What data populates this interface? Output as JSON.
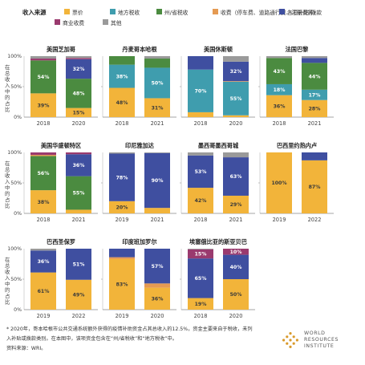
{
  "legend": {
    "title": "收入来源",
    "items": [
      {
        "key": "fare",
        "label": "票价",
        "color": "#f2b43a"
      },
      {
        "key": "local_tax",
        "label": "地方税收",
        "color": "#3f9dae"
      },
      {
        "key": "state_tax",
        "label": "州/省税收",
        "color": "#4b8b40"
      },
      {
        "key": "fees",
        "label": "收费（停车费、道路通行费、注册费等）",
        "color": "#e59a52"
      },
      {
        "key": "subsidy",
        "label": "各项补贴/拨款",
        "color": "#3f4fa0"
      },
      {
        "key": "commercial",
        "label": "商业收费",
        "color": "#9a3a6e"
      },
      {
        "key": "other",
        "label": "其他",
        "color": "#9a9a9a"
      }
    ]
  },
  "y_axis_label": "在总收入中的占比",
  "y_ticks": [
    "100%",
    "50%",
    "0%"
  ],
  "chart_data": {
    "type": "bar",
    "stacked": true,
    "ylim": [
      0,
      100
    ],
    "panels": [
      {
        "title": "美国芝加哥",
        "categories": [
          "2018",
          "2020"
        ],
        "bars": [
          {
            "fare": 39,
            "state_tax": 54,
            "commercial": 3,
            "other": 4
          },
          {
            "fare": 15,
            "state_tax": 48,
            "subsidy": 32,
            "commercial": 2,
            "other": 3
          }
        ],
        "labels": [
          {
            "fare": "39%",
            "state_tax": "54%"
          },
          {
            "fare": "15%",
            "state_tax": "48%",
            "subsidy": "32%"
          }
        ]
      },
      {
        "title": "丹麦哥本哈根",
        "categories": [
          "2018",
          "2021"
        ],
        "bars": [
          {
            "fare": 48,
            "local_tax": 38,
            "state_tax": 14
          },
          {
            "fare": 31,
            "local_tax": 50,
            "state_tax": 15,
            "other": 4
          }
        ],
        "labels": [
          {
            "fare": "48%",
            "local_tax": "38%"
          },
          {
            "fare": "31%",
            "local_tax": "50%"
          }
        ]
      },
      {
        "title": "美国休斯顿",
        "categories": [
          "2018",
          "2020"
        ],
        "bars": [
          {
            "fare": 8,
            "local_tax": 70,
            "subsidy": 22
          },
          {
            "fare": 3,
            "local_tax": 55,
            "subsidy": 32,
            "fees": 1,
            "other": 9
          }
        ],
        "labels": [
          {
            "local_tax": "70%"
          },
          {
            "local_tax": "55%",
            "subsidy": "32%"
          }
        ]
      },
      {
        "title": "法国巴黎",
        "categories": [
          "2018",
          "2021"
        ],
        "bars": [
          {
            "fare": 36,
            "local_tax": 18,
            "state_tax": 43,
            "other": 3
          },
          {
            "fare": 28,
            "local_tax": 17,
            "state_tax": 44,
            "subsidy": 8,
            "other": 3
          }
        ],
        "labels": [
          {
            "fare": "36%",
            "local_tax": "18%",
            "state_tax": "43%"
          },
          {
            "fare": "28%",
            "local_tax": "17%",
            "state_tax": "44%"
          }
        ]
      },
      {
        "title": "美国华盛顿特区",
        "categories": [
          "2018",
          "2021"
        ],
        "bars": [
          {
            "fare": 38,
            "state_tax": 56,
            "fees": 2,
            "commercial": 4
          },
          {
            "fare": 6,
            "state_tax": 55,
            "subsidy": 36,
            "commercial": 3
          }
        ],
        "labels": [
          {
            "fare": "38%",
            "state_tax": "56%"
          },
          {
            "state_tax": "55%",
            "subsidy": "36%"
          }
        ]
      },
      {
        "title": "印尼雅加达",
        "categories": [
          "2019",
          "2021"
        ],
        "bars": [
          {
            "fare": 20,
            "subsidy": 78,
            "other": 2
          },
          {
            "fare": 9,
            "subsidy": 90,
            "other": 1
          }
        ],
        "labels": [
          {
            "fare": "20%",
            "subsidy": "78%"
          },
          {
            "subsidy": "90%"
          }
        ]
      },
      {
        "title": "墨西哥墨西哥城",
        "categories": [
          "2018",
          "2021"
        ],
        "bars": [
          {
            "fare": 42,
            "subsidy": 53,
            "other": 5
          },
          {
            "fare": 29,
            "subsidy": 63,
            "other": 8
          }
        ],
        "labels": [
          {
            "fare": "42%",
            "subsidy": "53%"
          },
          {
            "fare": "29%",
            "subsidy": "63%"
          }
        ]
      },
      {
        "title": "巴西里约热内卢",
        "categories": [
          "2019",
          "2022"
        ],
        "bars": [
          {
            "fare": 100
          },
          {
            "fare": 87,
            "subsidy": 13
          }
        ],
        "labels": [
          {
            "fare": "100%"
          },
          {
            "fare": "87%"
          }
        ]
      },
      {
        "title": "巴西圣保罗",
        "categories": [
          "2019",
          "2022"
        ],
        "bars": [
          {
            "fare": 61,
            "subsidy": 36,
            "other": 3
          },
          {
            "fare": 49,
            "subsidy": 51
          }
        ],
        "labels": [
          {
            "fare": "61%",
            "subsidy": "36%"
          },
          {
            "fare": "49%",
            "subsidy": "51%"
          }
        ]
      },
      {
        "title": "印度班加罗尔",
        "categories": [
          "2019",
          "2020"
        ],
        "bars": [
          {
            "fare": 83,
            "subsidy": 14,
            "fees": 3
          },
          {
            "fare": 36,
            "subsidy": 57,
            "fees": 7
          }
        ],
        "labels": [
          {
            "fare": "83%"
          },
          {
            "fare": "36%",
            "subsidy": "57%"
          }
        ]
      },
      {
        "title": "埃塞俄比亚的斯亚贝巴",
        "categories": [
          "2018",
          "2020"
        ],
        "bars": [
          {
            "fare": 19,
            "subsidy": 65,
            "commercial": 15,
            "other": 1
          },
          {
            "fare": 50,
            "subsidy": 40,
            "commercial": 10
          }
        ],
        "labels": [
          {
            "fare": "19%",
            "subsidy": "65%",
            "commercial": "15%"
          },
          {
            "fare": "50%",
            "subsidy": "40%",
            "commercial": "10%"
          }
        ]
      }
    ]
  },
  "footnote": {
    "line1": "* 2020年，哥本哈根市公共交通系统额外获得的疫情补助资金占其总收入的12.5%，资金主要来自于税收，未列",
    "line2": "入补贴或拨款类别。在本图中，该项资金包含在“州/省税收”和“地方税收”中。",
    "source": "资料来源：WRI。"
  },
  "logo": {
    "line1": "WORLD",
    "line2": "RESOURCES",
    "line3": "INSTITUTE",
    "color": "#d99a2b"
  }
}
